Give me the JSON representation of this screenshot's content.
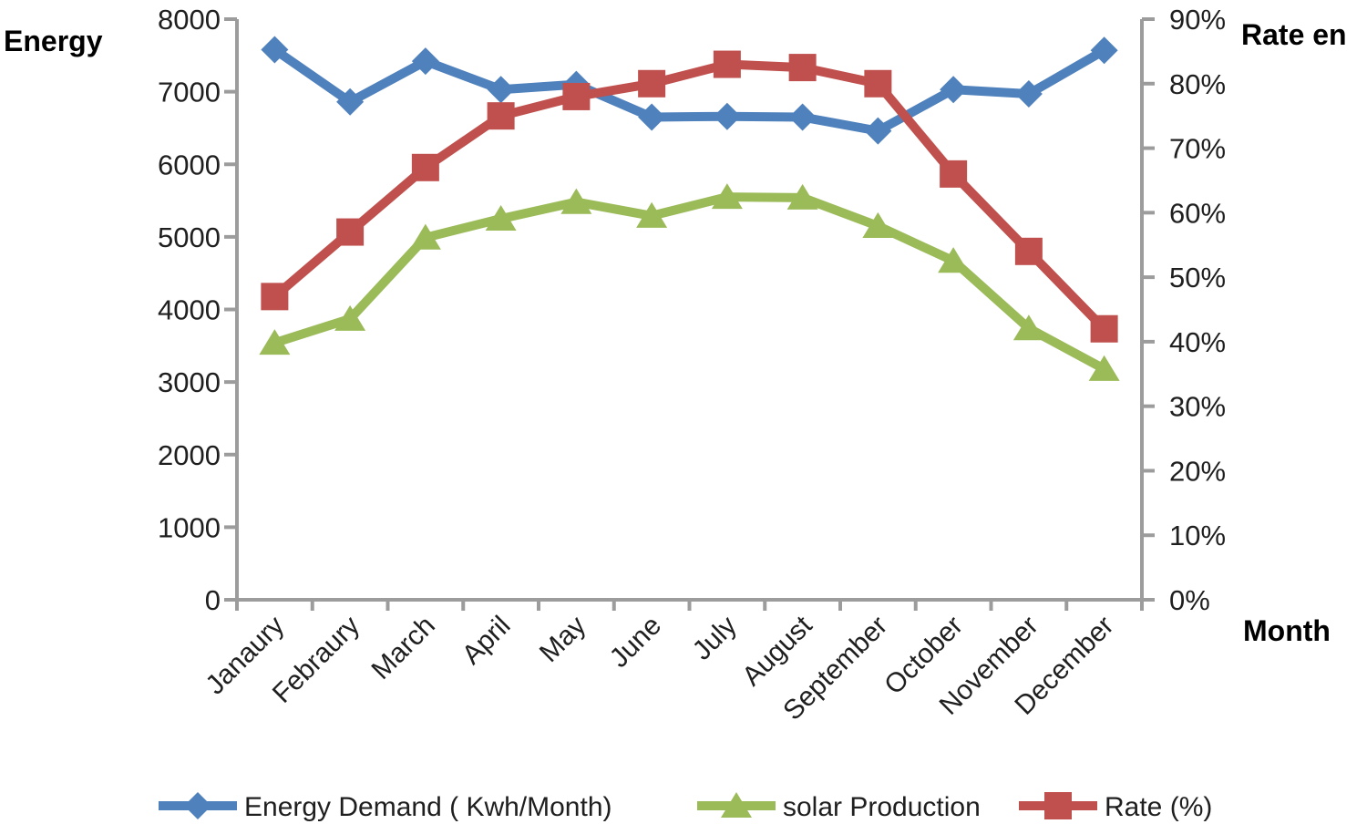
{
  "titles": {
    "left_axis": "Energy",
    "right_axis": "Rate en",
    "x_axis": "Month"
  },
  "chart_data": {
    "type": "line",
    "categories": [
      "Janaury",
      "Febraury",
      "March",
      "April",
      "May",
      "June",
      "July",
      "August",
      "September",
      "October",
      "November",
      "December"
    ],
    "series": [
      {
        "name": "Energy Demand ( Kwh/Month)",
        "axis": "left",
        "color": "#4F81BD",
        "marker": "diamond",
        "values": [
          7580,
          6860,
          7420,
          7030,
          7100,
          6650,
          6660,
          6650,
          6460,
          7030,
          6970,
          7570
        ]
      },
      {
        "name": "solar Production",
        "axis": "left",
        "color": "#9BBB59",
        "marker": "triangle",
        "values": [
          3540,
          3870,
          4990,
          5250,
          5480,
          5290,
          5550,
          5540,
          5150,
          4670,
          3740,
          3180
        ]
      },
      {
        "name": "Rate (%)",
        "axis": "right",
        "color": "#C0504D",
        "marker": "square",
        "values": [
          47,
          57,
          67,
          75,
          78,
          80,
          83,
          82.5,
          80,
          66,
          54,
          42
        ]
      }
    ],
    "left_axis": {
      "label": "Energy",
      "min": 0,
      "max": 8000,
      "step": 1000,
      "tick_labels": [
        "0",
        "1000",
        "2000",
        "3000",
        "4000",
        "5000",
        "6000",
        "7000",
        "8000"
      ]
    },
    "right_axis": {
      "label": "Rate en",
      "min": 0,
      "max": 90,
      "step": 10,
      "tick_labels": [
        "0%",
        "10%",
        "20%",
        "30%",
        "40%",
        "50%",
        "60%",
        "70%",
        "80%",
        "90%"
      ]
    },
    "x_axis": {
      "label": "Month"
    },
    "legend_position": "bottom",
    "grid": false,
    "axis_color": "#9C9C9C",
    "text_color": "#1f1f1f"
  }
}
